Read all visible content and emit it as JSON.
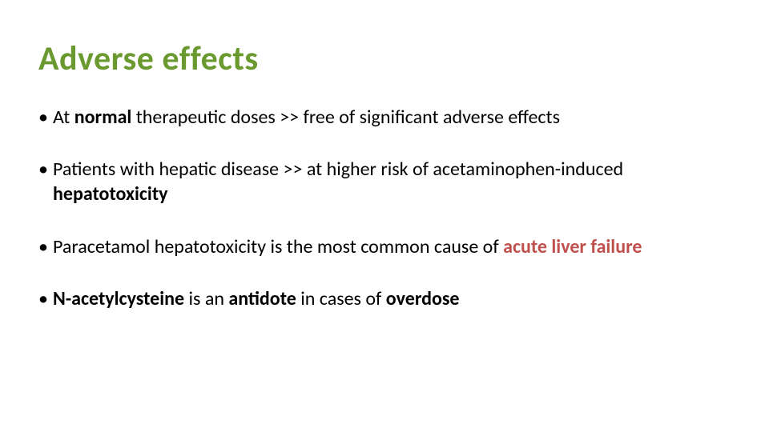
{
  "title": "Adverse effects",
  "title_color": "#6a9a2f",
  "title_fontsize": 42,
  "body_fontsize": 24,
  "body_color": "#000000",
  "accent_color": "#c0504d",
  "background_color": "#ffffff",
  "bullets": [
    {
      "runs": [
        {
          "text": "At ",
          "style": "normal"
        },
        {
          "text": "normal",
          "style": "bold"
        },
        {
          "text": "  therapeutic doses >> free of significant adverse effects",
          "style": "normal"
        }
      ]
    },
    {
      "runs": [
        {
          "text": "Patients with hepatic disease >> at higher risk of acetaminophen-induced ",
          "style": "normal"
        },
        {
          "text": "hepatotoxicity",
          "style": "bold"
        }
      ]
    },
    {
      "runs": [
        {
          "text": "Paracetamol hepatotoxicity is the most common cause of ",
          "style": "normal"
        },
        {
          "text": "acute liver failure",
          "style": "accent"
        }
      ]
    },
    {
      "runs": [
        {
          "text": "N-acetylcysteine",
          "style": "bold"
        },
        {
          "text": " is an ",
          "style": "normal"
        },
        {
          "text": "antidote",
          "style": "bold"
        },
        {
          "text": " in cases of ",
          "style": "normal"
        },
        {
          "text": "overdose",
          "style": "bold"
        }
      ]
    }
  ]
}
